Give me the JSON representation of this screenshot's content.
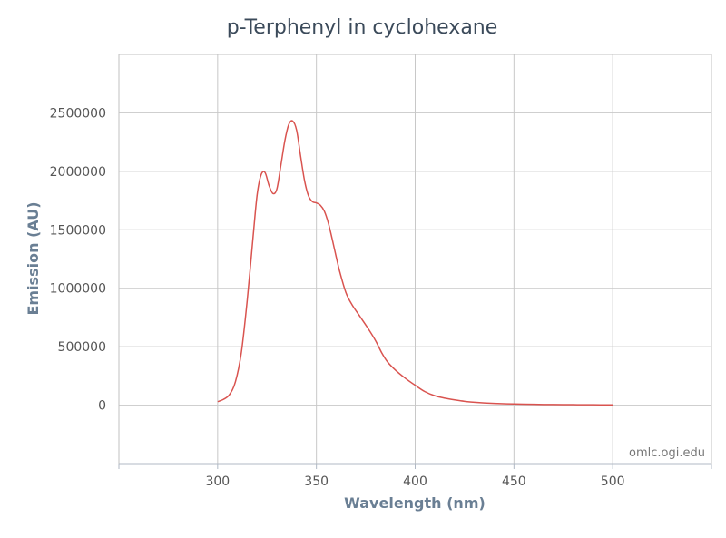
{
  "chart_data": {
    "type": "line",
    "title": "p-Terphenyl in cyclohexane",
    "xlabel": "Wavelength (nm)",
    "ylabel": "Emission (AU)",
    "xlim": [
      250,
      550
    ],
    "ylim": [
      -500000,
      3000000
    ],
    "xticks": [
      300,
      350,
      400,
      450,
      500
    ],
    "yticks": [
      0,
      500000,
      1000000,
      1500000,
      2000000,
      2500000
    ],
    "grid": true,
    "credit": "omlc.ogi.edu",
    "series": [
      {
        "color": "#d9534f",
        "x": [
          300,
          303,
          306,
          309,
          312,
          315,
          318,
          320,
          322,
          324,
          326,
          328,
          330,
          332,
          334,
          336,
          338,
          340,
          342,
          344,
          346,
          348,
          350,
          352,
          354,
          356,
          358,
          360,
          362,
          365,
          368,
          372,
          376,
          380,
          383,
          386,
          390,
          395,
          400,
          405,
          410,
          415,
          420,
          425,
          430,
          435,
          440,
          450,
          460,
          470,
          480,
          490,
          500
        ],
        "y": [
          30000,
          50000,
          90000,
          200000,
          450000,
          900000,
          1450000,
          1800000,
          1970000,
          1990000,
          1880000,
          1810000,
          1850000,
          2050000,
          2260000,
          2400000,
          2430000,
          2350000,
          2130000,
          1920000,
          1790000,
          1740000,
          1730000,
          1710000,
          1660000,
          1560000,
          1420000,
          1270000,
          1130000,
          960000,
          860000,
          760000,
          660000,
          550000,
          450000,
          370000,
          300000,
          230000,
          170000,
          115000,
          80000,
          60000,
          45000,
          33000,
          25000,
          19000,
          15000,
          10000,
          7000,
          5000,
          4000,
          3000,
          2500
        ]
      }
    ]
  }
}
